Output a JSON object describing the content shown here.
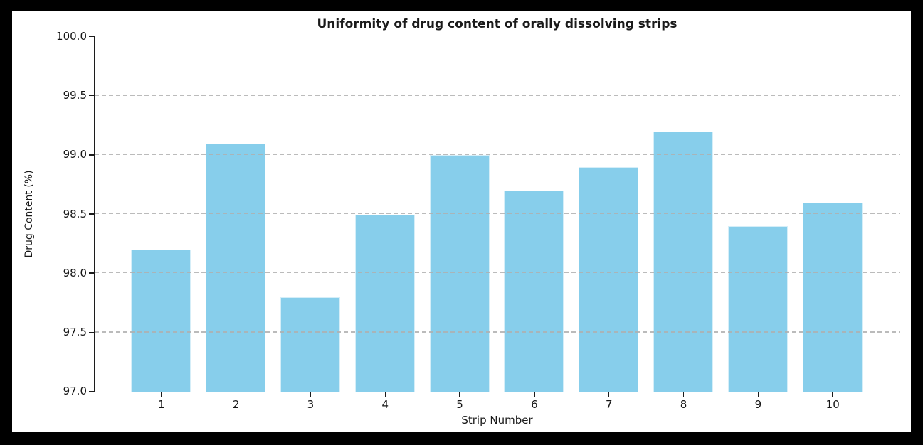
{
  "window": {
    "frame_color": "#000000",
    "figure_background": "#ffffff"
  },
  "chart_data": {
    "type": "bar",
    "title": "Uniformity of drug content of orally dissolving strips",
    "xlabel": "Strip Number",
    "ylabel": "Drug Content (%)",
    "categories": [
      "1",
      "2",
      "3",
      "4",
      "5",
      "6",
      "7",
      "8",
      "9",
      "10"
    ],
    "values": [
      98.2,
      99.1,
      97.8,
      98.5,
      99.0,
      98.7,
      98.9,
      99.2,
      98.4,
      98.6
    ],
    "ylim": [
      97.0,
      100.0
    ],
    "yticks": [
      97.0,
      97.5,
      98.0,
      98.5,
      99.0,
      99.5,
      100.0
    ],
    "ytick_labels": [
      "97.0",
      "97.5",
      "98.0",
      "98.5",
      "99.0",
      "99.5",
      "100.0"
    ],
    "xlim": [
      0.11,
      10.89
    ],
    "bar_width_units": 0.8,
    "bar_color": "#87CEEB",
    "bar_edge_color": "rgba(255,255,255,0.65)",
    "grid": "horizontal dashed, drawn above bars",
    "gridline_color": "#afafaf",
    "spine_color": "#1c1c1c",
    "legend": "none"
  }
}
